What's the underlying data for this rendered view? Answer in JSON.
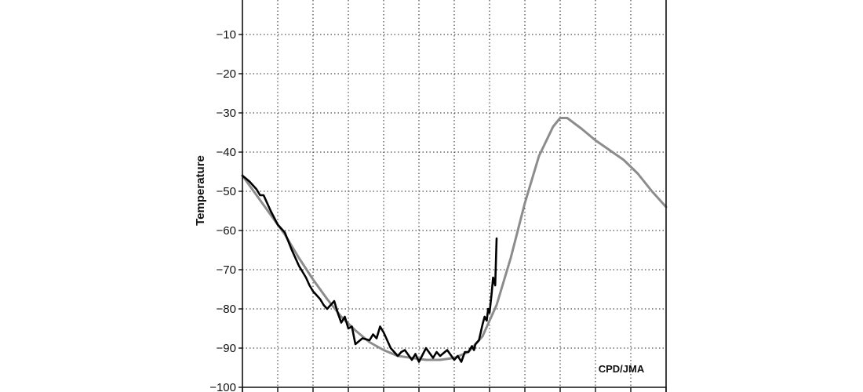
{
  "chart_data": {
    "type": "line",
    "title": "",
    "xlabel": "",
    "ylabel": "Temperature",
    "ylim": [
      -100,
      0
    ],
    "xlim": [
      0,
      60
    ],
    "yticks": [
      -100,
      -90,
      -80,
      -70,
      -60,
      -50,
      -40,
      -30,
      -20,
      -10
    ],
    "ytick_labels": [
      "−100",
      "−90",
      "−80",
      "−70",
      "−60",
      "−50",
      "−40",
      "−30",
      "−20",
      "−10"
    ],
    "grid": true,
    "annotation": "CPD/JMA",
    "series": [
      {
        "color": "#8c8c8c",
        "x": [
          0,
          2,
          4,
          6,
          8,
          10,
          12,
          14,
          16,
          18,
          20,
          22,
          24,
          26,
          28,
          30,
          32,
          34,
          36,
          38,
          40,
          42,
          44,
          45,
          46,
          48,
          50,
          52,
          54,
          56,
          58,
          60
        ],
        "y": [
          -46,
          -51,
          -56,
          -61,
          -67,
          -72.5,
          -77.5,
          -82,
          -85.5,
          -88.5,
          -90.5,
          -92,
          -92.5,
          -93,
          -93,
          -92.5,
          -91,
          -87,
          -79,
          -67,
          -53,
          -41,
          -33.5,
          -31.3,
          -31.3,
          -34,
          -37,
          -39.5,
          -42,
          -45.5,
          -50,
          -54
        ]
      },
      {
        "color": "#000000",
        "x": [
          0,
          1,
          2,
          2.5,
          3,
          4,
          5,
          6,
          7,
          7.5,
          8,
          9,
          9.5,
          10,
          11,
          11.5,
          12,
          13,
          13.5,
          14,
          14.5,
          15,
          15.5,
          16,
          17,
          18,
          18.5,
          19,
          19.5,
          20,
          20.5,
          21,
          22,
          22.5,
          23,
          24,
          24.5,
          25,
          26,
          27,
          27.5,
          28,
          29,
          30,
          30.5,
          31,
          31.5,
          32,
          32.5,
          32.8,
          33,
          33.5,
          34,
          34.3,
          34.6,
          34.8,
          35,
          35.3,
          35.5,
          35.8,
          36
        ],
        "y": [
          -46,
          -47.5,
          -49.5,
          -51,
          -51,
          -55,
          -58.5,
          -60.5,
          -65,
          -67,
          -69,
          -72,
          -74,
          -75.5,
          -77.5,
          -79,
          -80,
          -78,
          -81,
          -83.5,
          -82,
          -85,
          -84.5,
          -89,
          -87.5,
          -88,
          -86.5,
          -87.5,
          -84.5,
          -86,
          -88,
          -90,
          -92,
          -91,
          -90.5,
          -93,
          -91.5,
          -93.5,
          -90,
          -92.5,
          -91,
          -92,
          -90.5,
          -93,
          -92,
          -93.5,
          -91,
          -91,
          -89.5,
          -90.5,
          -89,
          -88,
          -84,
          -82,
          -83,
          -80,
          -81,
          -76,
          -72,
          -74,
          -62
        ]
      }
    ]
  }
}
